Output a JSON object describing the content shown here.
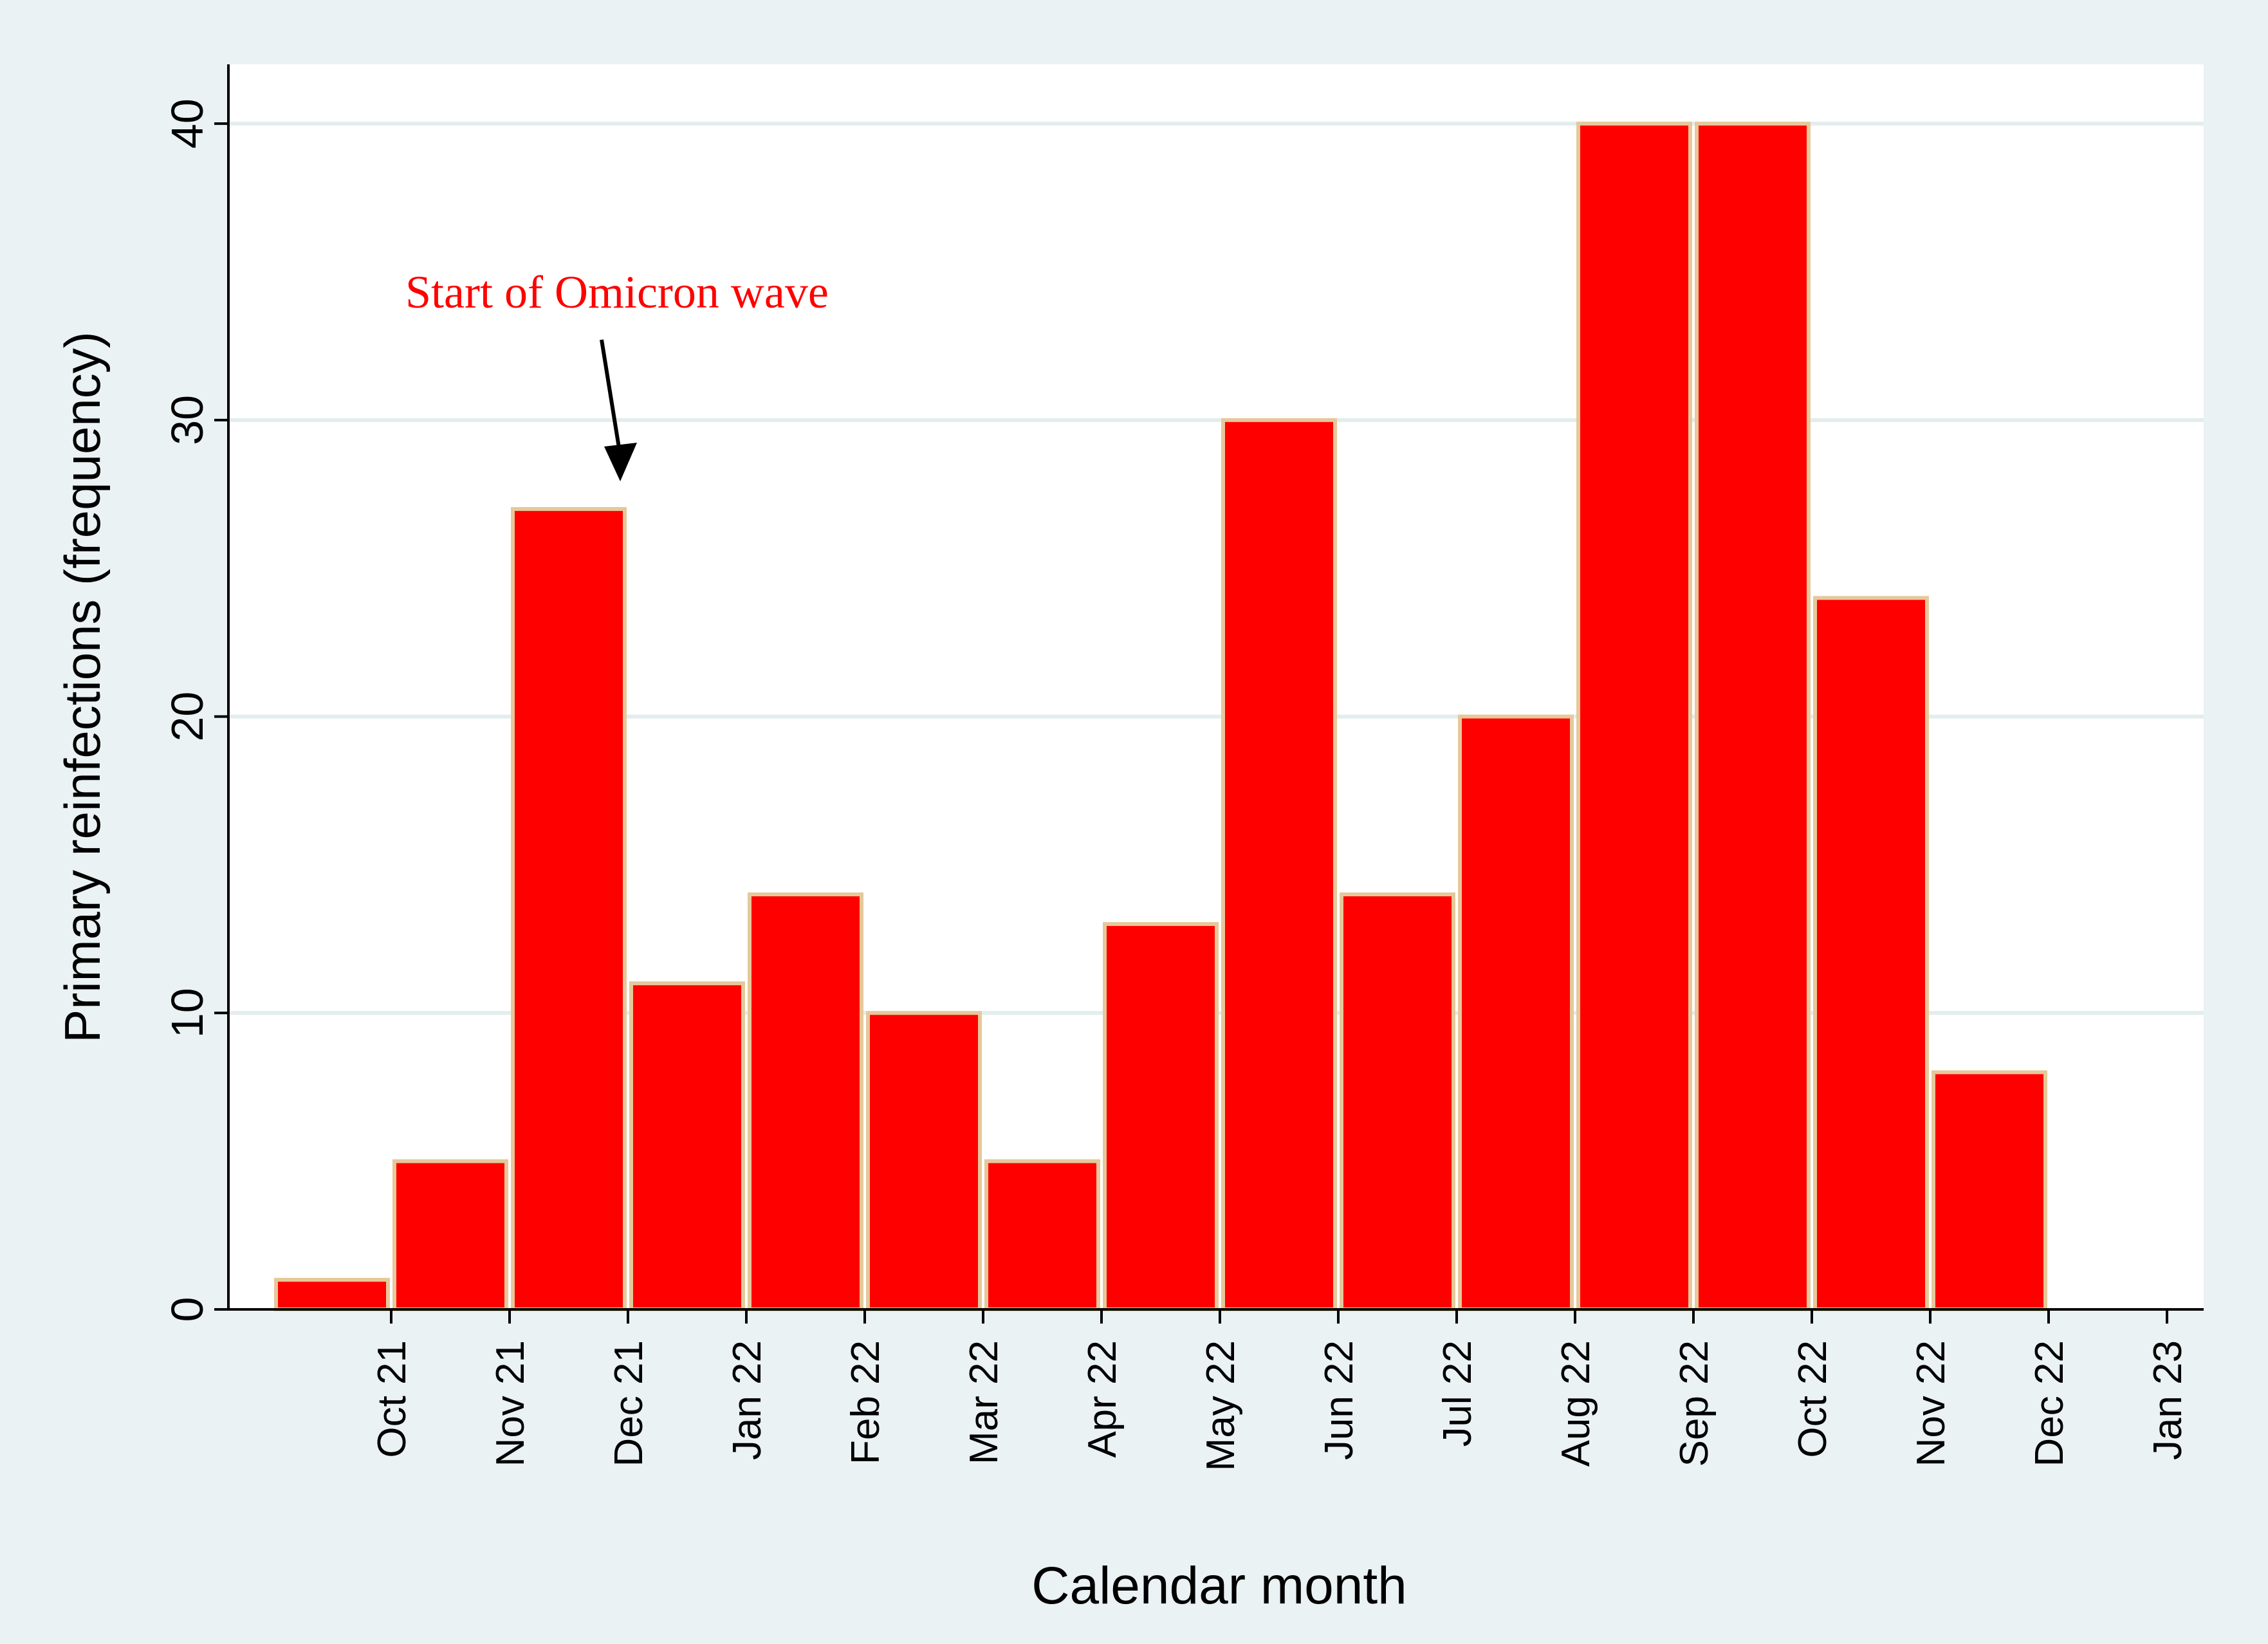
{
  "chart_data": {
    "type": "bar",
    "title": "",
    "xlabel": "Calendar month",
    "ylabel": "Primary reinfections (frequency)",
    "ylim": [
      0,
      42
    ],
    "yticks": [
      0,
      10,
      20,
      30,
      40
    ],
    "ytick_labels": [
      "0",
      "10",
      "20",
      "30",
      "40"
    ],
    "tick_labels": [
      "Oct 21",
      "Nov 21",
      "Dec 21",
      "Jan 22",
      "Feb 22",
      "Mar 22",
      "Apr 22",
      "May 22",
      "Jun 22",
      "Jul 22",
      "Aug 22",
      "Sep 22",
      "Oct 22",
      "Nov 22",
      "Dec 22",
      "Jan 23"
    ],
    "categories": [
      "Oct 21",
      "Nov 21",
      "Dec 21",
      "Jan 22",
      "Feb 22",
      "Mar 22",
      "Apr 22",
      "May 22",
      "Jun 22",
      "Jul 22",
      "Aug 22",
      "Sep 22",
      "Oct 22",
      "Nov 22",
      "Dec 22"
    ],
    "values": [
      1,
      5,
      27,
      11,
      14,
      10,
      5,
      13,
      30,
      14,
      20,
      40,
      40,
      24,
      8
    ],
    "grid": true,
    "annotation": {
      "text": "Start of Omicron wave",
      "target_category": "Dec 21",
      "target_value": 27,
      "color": "#ff0000"
    },
    "colors": {
      "bar_fill": "#ff0000",
      "bar_edge": "#e6c89a",
      "frame_bg": "#eaf2f3",
      "plot_bg": "#ffffff",
      "grid": "#e3edee",
      "axis": "#000000"
    }
  }
}
